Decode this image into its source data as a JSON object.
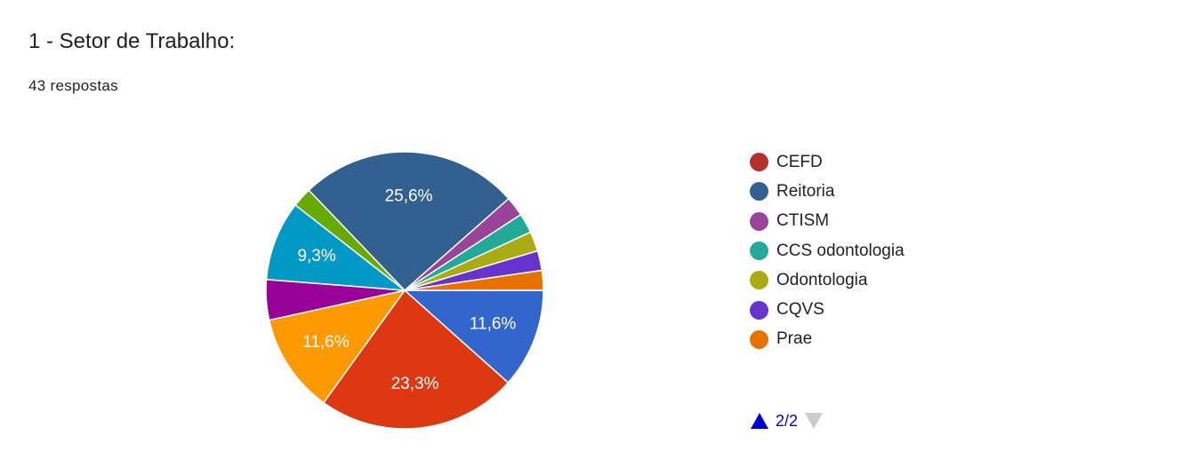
{
  "question": {
    "title": "1 - Setor de Trabalho:",
    "responses": "43 respostas"
  },
  "legend": {
    "items": [
      {
        "label": "CEFD",
        "color": "#b3312b"
      },
      {
        "label": "Reitoria",
        "color": "#33618f"
      },
      {
        "label": "CTISM",
        "color": "#994499"
      },
      {
        "label": "CCS odontologia",
        "color": "#22aa99"
      },
      {
        "label": "Odontologia",
        "color": "#aaaa11"
      },
      {
        "label": "CQVS",
        "color": "#6633cc"
      },
      {
        "label": "Prae",
        "color": "#e67300"
      }
    ],
    "pager": {
      "text": "2/2",
      "up_icon": "triangle-up-icon",
      "down_icon": "triangle-down-icon",
      "up_color": "#0000cc",
      "down_color": "#cccccc"
    }
  },
  "chart_data": {
    "type": "pie",
    "total_responses": 43,
    "slices": [
      {
        "value": 11.6,
        "label": "11,6%",
        "color": "#3366cc"
      },
      {
        "value": 23.3,
        "label": "23,3%",
        "color": "#dc3912"
      },
      {
        "value": 11.6,
        "label": "11,6%",
        "color": "#ff9900"
      },
      {
        "value": 4.7,
        "label": "",
        "color": "#990099"
      },
      {
        "value": 9.3,
        "label": "9,3%",
        "color": "#0099c6"
      },
      {
        "value": 2.3,
        "label": "",
        "color": "#66aa00"
      },
      {
        "value": 25.6,
        "label": "25,6%",
        "color": "#33618f"
      },
      {
        "value": 2.3,
        "label": "",
        "color": "#994499"
      },
      {
        "value": 2.3,
        "label": "",
        "color": "#22aa99"
      },
      {
        "value": 2.3,
        "label": "",
        "color": "#aaaa11"
      },
      {
        "value": 2.3,
        "label": "",
        "color": "#6633cc"
      },
      {
        "value": 2.3,
        "label": "",
        "color": "#e67300"
      }
    ]
  }
}
